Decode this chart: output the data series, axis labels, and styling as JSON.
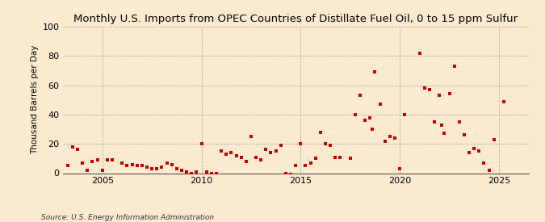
{
  "title": "Monthly U.S. Imports from OPEC Countries of Distillate Fuel Oil, 0 to 15 ppm Sulfur",
  "ylabel": "Thousand Barrels per Day",
  "source": "Source: U.S. Energy Information Administration",
  "background_color": "#faebd0",
  "plot_bg_color": "#faebd0",
  "marker_color": "#cc0000",
  "grid_color": "#aaaaaa",
  "ylim": [
    0,
    100
  ],
  "xlim": [
    2003.0,
    2026.5
  ],
  "yticks": [
    0,
    20,
    40,
    60,
    80,
    100
  ],
  "xticks": [
    2005,
    2010,
    2015,
    2020,
    2025
  ],
  "title_fontsize": 9.5,
  "ylabel_fontsize": 7.5,
  "tick_fontsize": 8,
  "source_fontsize": 6.5,
  "data_points": [
    [
      2003.25,
      5
    ],
    [
      2003.5,
      18
    ],
    [
      2003.75,
      16
    ],
    [
      2004.0,
      7
    ],
    [
      2004.25,
      2
    ],
    [
      2004.5,
      8
    ],
    [
      2004.75,
      9
    ],
    [
      2005.0,
      2
    ],
    [
      2005.25,
      9
    ],
    [
      2005.5,
      9
    ],
    [
      2006.0,
      7
    ],
    [
      2006.25,
      5
    ],
    [
      2006.5,
      6
    ],
    [
      2006.75,
      5
    ],
    [
      2007.0,
      5
    ],
    [
      2007.25,
      4
    ],
    [
      2007.5,
      3
    ],
    [
      2007.75,
      3
    ],
    [
      2008.0,
      4
    ],
    [
      2008.25,
      7
    ],
    [
      2008.5,
      6
    ],
    [
      2008.75,
      3
    ],
    [
      2009.0,
      2
    ],
    [
      2009.25,
      1
    ],
    [
      2009.5,
      0
    ],
    [
      2009.75,
      1
    ],
    [
      2010.0,
      20
    ],
    [
      2010.25,
      1
    ],
    [
      2010.5,
      0
    ],
    [
      2010.75,
      0
    ],
    [
      2011.0,
      15
    ],
    [
      2011.25,
      13
    ],
    [
      2011.5,
      14
    ],
    [
      2011.75,
      12
    ],
    [
      2012.0,
      11
    ],
    [
      2012.25,
      8
    ],
    [
      2012.5,
      25
    ],
    [
      2012.75,
      11
    ],
    [
      2013.0,
      9
    ],
    [
      2013.25,
      16
    ],
    [
      2013.5,
      14
    ],
    [
      2013.75,
      15
    ],
    [
      2014.0,
      19
    ],
    [
      2014.25,
      0
    ],
    [
      2014.5,
      -1
    ],
    [
      2014.75,
      5
    ],
    [
      2015.0,
      20
    ],
    [
      2015.25,
      5
    ],
    [
      2015.5,
      7
    ],
    [
      2015.75,
      10
    ],
    [
      2016.0,
      28
    ],
    [
      2016.25,
      20
    ],
    [
      2016.5,
      19
    ],
    [
      2016.75,
      11
    ],
    [
      2017.0,
      11
    ],
    [
      2017.5,
      10
    ],
    [
      2017.75,
      40
    ],
    [
      2018.0,
      53
    ],
    [
      2018.25,
      36
    ],
    [
      2018.5,
      38
    ],
    [
      2018.6,
      30
    ],
    [
      2018.75,
      69
    ],
    [
      2019.0,
      47
    ],
    [
      2019.25,
      22
    ],
    [
      2019.5,
      25
    ],
    [
      2019.75,
      24
    ],
    [
      2020.0,
      3
    ],
    [
      2020.25,
      40
    ],
    [
      2021.0,
      82
    ],
    [
      2021.25,
      58
    ],
    [
      2021.5,
      57
    ],
    [
      2021.75,
      35
    ],
    [
      2022.0,
      53
    ],
    [
      2022.1,
      33
    ],
    [
      2022.25,
      27
    ],
    [
      2022.5,
      54
    ],
    [
      2022.75,
      73
    ],
    [
      2023.0,
      35
    ],
    [
      2023.25,
      26
    ],
    [
      2023.5,
      14
    ],
    [
      2023.75,
      17
    ],
    [
      2024.0,
      15
    ],
    [
      2024.25,
      7
    ],
    [
      2024.5,
      2
    ],
    [
      2024.75,
      23
    ],
    [
      2025.25,
      49
    ]
  ]
}
